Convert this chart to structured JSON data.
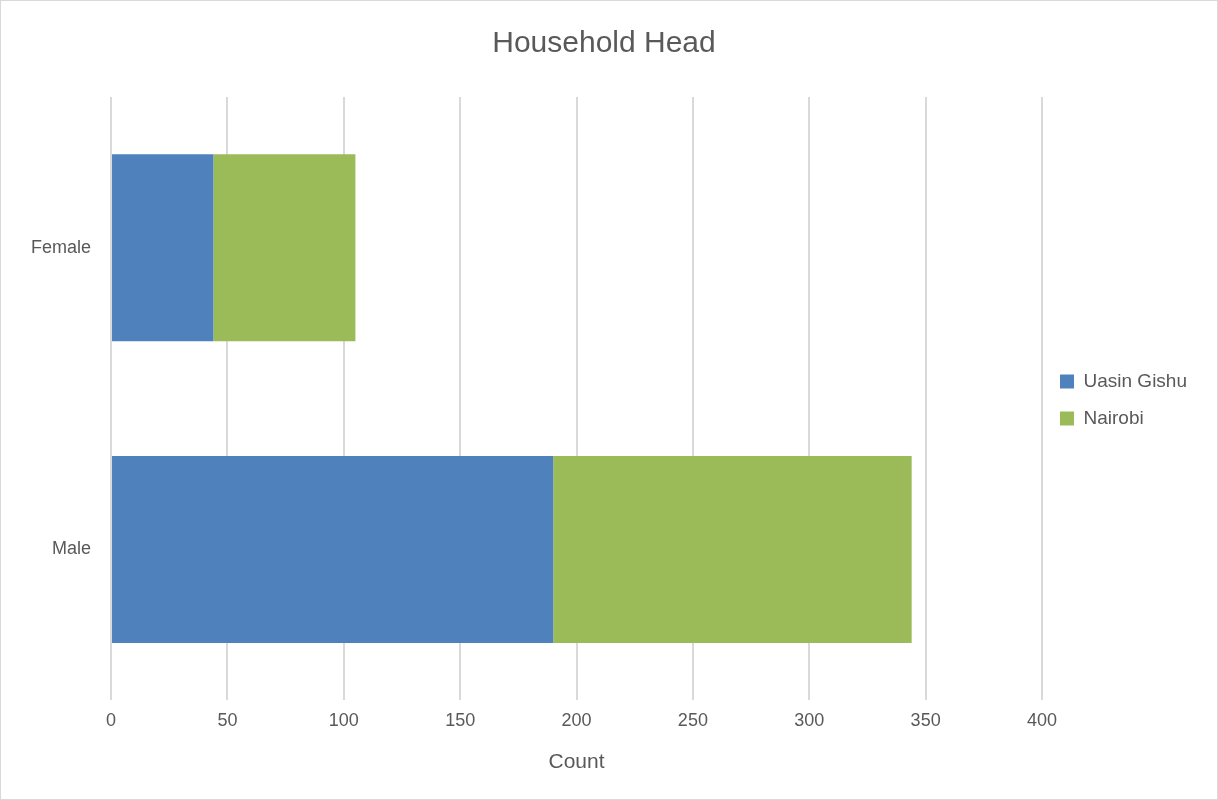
{
  "chart_data": {
    "type": "bar",
    "orientation": "horizontal",
    "stacked": true,
    "title": "Household Head",
    "xlabel": "Count",
    "categories": [
      "Female",
      "Male"
    ],
    "series": [
      {
        "name": "Uasin Gishu",
        "color": "#4f81bd",
        "values": [
          44,
          190
        ]
      },
      {
        "name": "Nairobi",
        "color": "#9bbb59",
        "values": [
          61,
          154
        ]
      }
    ],
    "xlim": [
      0,
      400
    ],
    "xticks": [
      0,
      50,
      100,
      150,
      200,
      250,
      300,
      350,
      400
    ],
    "grid": "x",
    "legend": "right"
  }
}
